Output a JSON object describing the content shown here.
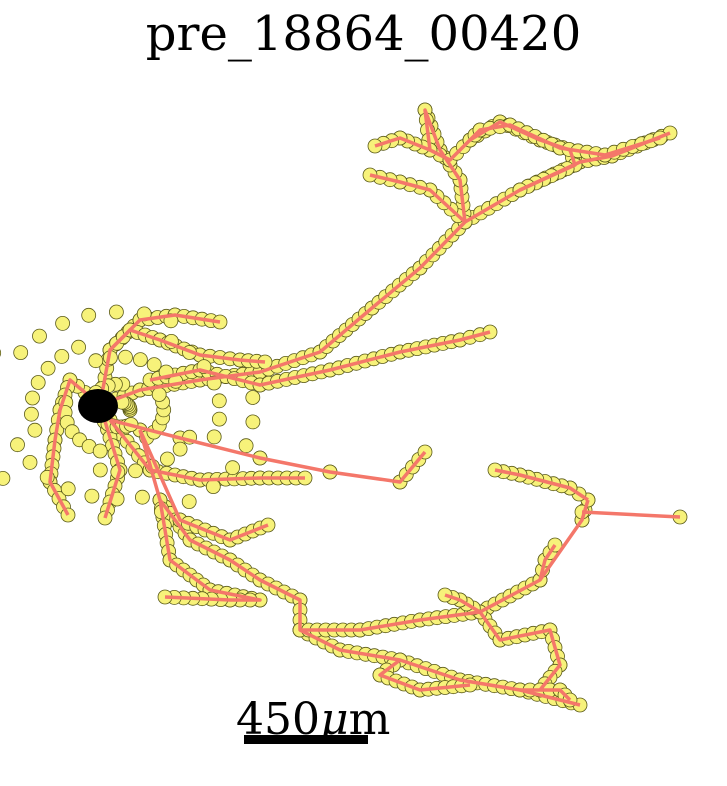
{
  "title": "pre_18864_00420",
  "scale_bar": {
    "value": "450",
    "mu": "μ",
    "unit_rest": "m"
  },
  "colors": {
    "skeleton": "#f4776a",
    "node_fill": "#f7f27a",
    "node_stroke": "#5a5a1a",
    "soma": "#000000"
  }
}
